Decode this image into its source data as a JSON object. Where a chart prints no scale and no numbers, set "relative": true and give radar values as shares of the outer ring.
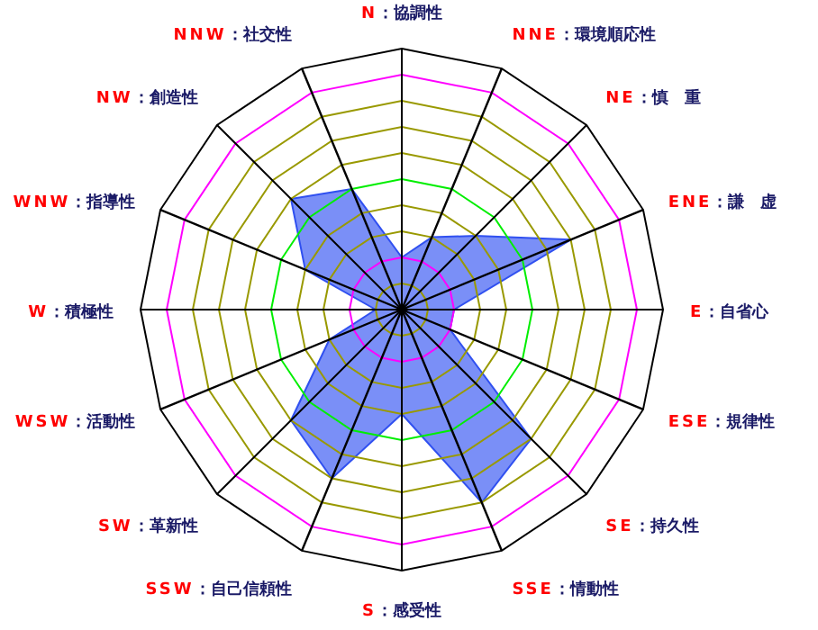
{
  "chart_data": {
    "type": "radar",
    "relative": true,
    "grid": true,
    "legend": false,
    "categories": [
      "N：協調性",
      "NNE：環境順応性",
      "NE：慎　重",
      "ENE：謙　虚",
      "E：自省心",
      "ESE：規律性",
      "SE：持久性",
      "SSE：情動性",
      "S：感受性",
      "SSW：自己信頼性",
      "SW：革新性",
      "WSW：活動性",
      "W：積極性",
      "WNW：指導性",
      "NW：創造性",
      "NNW：社交性"
    ],
    "series": [
      {
        "color": "#7a8ff7",
        "values": [
          0.2,
          0.3,
          0.4,
          0.7,
          0.2,
          0.2,
          0.7,
          0.8,
          0.4,
          0.7,
          0.6,
          0.3,
          0.1,
          0.4,
          0.6,
          0.5
        ]
      }
    ]
  }
}
